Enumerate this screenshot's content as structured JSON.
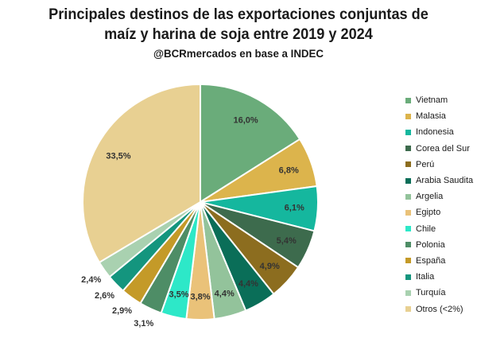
{
  "header": {
    "title_line1": "Principales destinos de las exportaciones conjuntas de",
    "title_line2": "maíz y harina de soja entre 2019 y 2024",
    "subtitle": "@BCRmercados en base a INDEC"
  },
  "chart_data": {
    "type": "pie",
    "title": "Principales destinos de las exportaciones conjuntas de maíz y harina de soja entre 2019 y 2024",
    "subtitle": "@BCRmercados en base a INDEC",
    "legend_position": "right",
    "start": "12 o'clock, clockwise",
    "slices": [
      {
        "label": "Vietnam",
        "value": 16.0,
        "display": "16,0%",
        "color": "#6aac7a"
      },
      {
        "label": "Malasia",
        "value": 6.8,
        "display": "6,8%",
        "color": "#dcb44c"
      },
      {
        "label": "Indonesia",
        "value": 6.1,
        "display": "6,1%",
        "color": "#15b79e"
      },
      {
        "label": "Corea del Sur",
        "value": 5.4,
        "display": "5,4%",
        "color": "#3d6b4d"
      },
      {
        "label": "Perú",
        "value": 4.9,
        "display": "4,9%",
        "color": "#8c6d1f"
      },
      {
        "label": "Arabia Saudita",
        "value": 4.4,
        "display": "4,4%",
        "color": "#0a6e58"
      },
      {
        "label": "Argelia",
        "value": 4.4,
        "display": "4,4%",
        "color": "#93c39b"
      },
      {
        "label": "Egipto",
        "value": 3.8,
        "display": "3,8%",
        "color": "#eac279"
      },
      {
        "label": "Chile",
        "value": 3.5,
        "display": "3,5%",
        "color": "#2de8c8"
      },
      {
        "label": "Polonia",
        "value": 3.1,
        "display": "3,1%",
        "color": "#4e8d66"
      },
      {
        "label": "España",
        "value": 2.9,
        "display": "2,9%",
        "color": "#c49a28"
      },
      {
        "label": "Italia",
        "value": 2.6,
        "display": "2,6%",
        "color": "#14957e"
      },
      {
        "label": "Turquía",
        "value": 2.4,
        "display": "2,4%",
        "color": "#a9d1b0"
      },
      {
        "label": "Otros (<2%)",
        "value": 33.5,
        "display": "33,5%",
        "color": "#e8d092"
      }
    ]
  }
}
